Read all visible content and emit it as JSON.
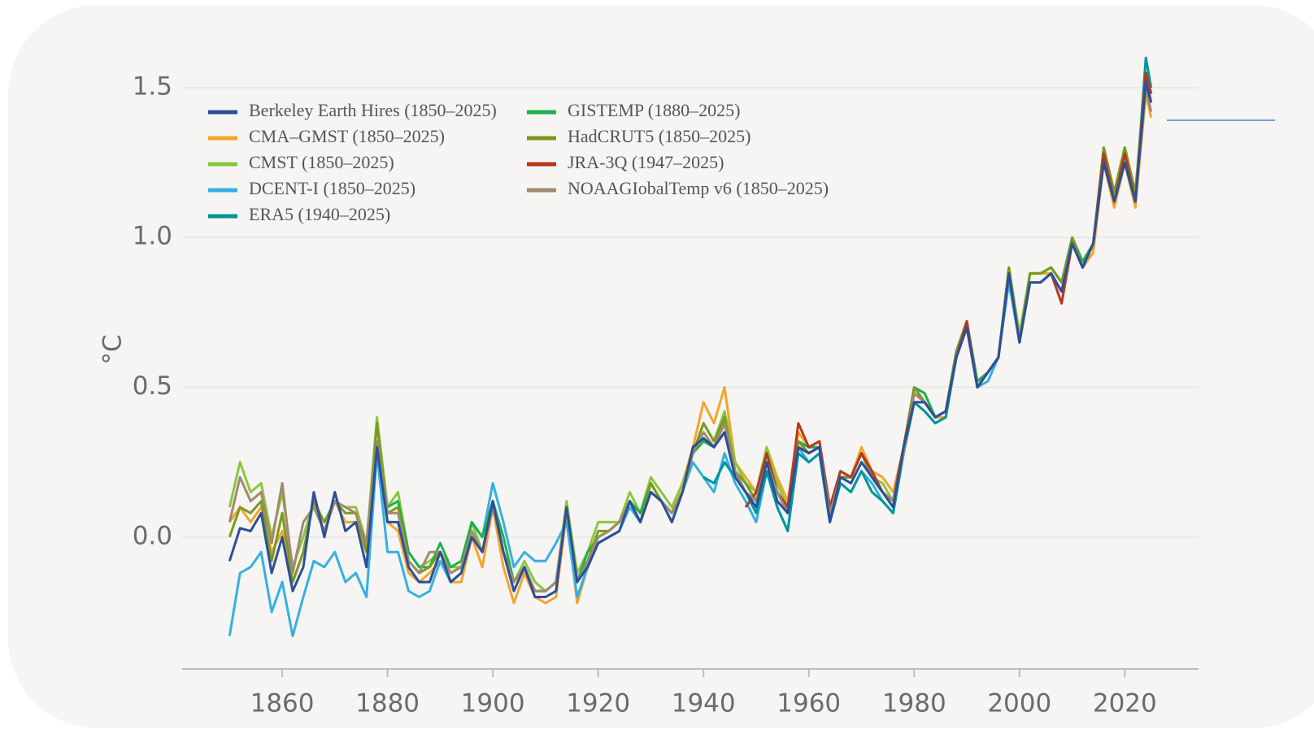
{
  "chart_data": {
    "type": "line",
    "y_label": "°C",
    "x": [
      1850,
      1852,
      1854,
      1856,
      1858,
      1860,
      1862,
      1864,
      1866,
      1868,
      1870,
      1872,
      1874,
      1876,
      1878,
      1880,
      1882,
      1884,
      1886,
      1888,
      1890,
      1892,
      1894,
      1896,
      1898,
      1900,
      1902,
      1904,
      1906,
      1908,
      1910,
      1912,
      1914,
      1916,
      1918,
      1920,
      1922,
      1924,
      1926,
      1928,
      1930,
      1932,
      1934,
      1936,
      1938,
      1940,
      1942,
      1944,
      1946,
      1948,
      1950,
      1952,
      1954,
      1956,
      1958,
      1960,
      1962,
      1964,
      1966,
      1968,
      1970,
      1972,
      1974,
      1976,
      1978,
      1980,
      1982,
      1984,
      1986,
      1988,
      1990,
      1992,
      1994,
      1996,
      1998,
      2000,
      2002,
      2004,
      2006,
      2008,
      2010,
      2012,
      2014,
      2016,
      2018,
      2020,
      2022,
      2024,
      2025
    ],
    "xlim": [
      1841,
      2034
    ],
    "xticks": [
      1860,
      1880,
      1900,
      1920,
      1940,
      1960,
      1980,
      2000,
      2020
    ],
    "ylim": [
      -0.44,
      1.63
    ],
    "yticks": [
      {
        "value": 0,
        "label": "0.0"
      },
      {
        "value": 0.5,
        "label": "0.5"
      },
      {
        "value": 1,
        "label": "1.0"
      },
      {
        "value": 1.5,
        "label": "1.5"
      }
    ],
    "grid": true,
    "legend": "top-left",
    "series": [
      {
        "name": "Berkeley Earth Hires (1850–2025)",
        "color": "#2b4f9a",
        "values": [
          -0.08,
          0.03,
          0.02,
          0.08,
          -0.12,
          0.0,
          -0.18,
          -0.1,
          0.15,
          0.0,
          0.15,
          0.02,
          0.05,
          -0.1,
          0.3,
          0.05,
          0.05,
          -0.1,
          -0.15,
          -0.15,
          -0.05,
          -0.15,
          -0.12,
          0.0,
          -0.05,
          0.12,
          -0.05,
          -0.18,
          -0.1,
          -0.2,
          -0.2,
          -0.18,
          0.1,
          -0.15,
          -0.1,
          -0.02,
          0.0,
          0.02,
          0.12,
          0.05,
          0.15,
          0.12,
          0.05,
          0.15,
          0.3,
          0.33,
          0.3,
          0.35,
          0.2,
          0.15,
          0.1,
          0.25,
          0.12,
          0.08,
          0.3,
          0.28,
          0.3,
          0.05,
          0.2,
          0.18,
          0.25,
          0.2,
          0.15,
          0.1,
          0.3,
          0.45,
          0.45,
          0.4,
          0.42,
          0.6,
          0.7,
          0.5,
          0.55,
          0.6,
          0.88,
          0.65,
          0.85,
          0.85,
          0.88,
          0.82,
          0.98,
          0.9,
          0.98,
          1.25,
          1.12,
          1.25,
          1.12,
          1.52,
          1.45
        ]
      },
      {
        "name": "CMA–GMST (1850–2025)",
        "color": "#f4a52c",
        "values": [
          0.05,
          0.1,
          0.05,
          0.1,
          -0.05,
          0.02,
          -0.15,
          -0.05,
          0.12,
          0.02,
          0.12,
          0.05,
          0.05,
          -0.05,
          0.3,
          0.05,
          0.02,
          -0.12,
          -0.15,
          -0.12,
          -0.08,
          -0.15,
          -0.15,
          0.0,
          -0.1,
          0.1,
          -0.1,
          -0.22,
          -0.12,
          -0.2,
          -0.22,
          -0.2,
          0.08,
          -0.22,
          -0.1,
          0.0,
          0.02,
          0.05,
          0.12,
          0.05,
          0.18,
          0.12,
          0.08,
          0.18,
          0.3,
          0.45,
          0.38,
          0.5,
          0.25,
          0.2,
          0.15,
          0.3,
          0.2,
          0.12,
          0.35,
          0.3,
          0.32,
          0.1,
          0.22,
          0.2,
          0.3,
          0.22,
          0.2,
          0.15,
          0.3,
          0.5,
          0.45,
          0.4,
          0.4,
          0.6,
          0.72,
          0.5,
          0.55,
          0.6,
          0.88,
          0.65,
          0.88,
          0.88,
          0.88,
          0.82,
          0.98,
          0.9,
          0.95,
          1.25,
          1.1,
          1.25,
          1.1,
          1.48,
          1.4
        ]
      },
      {
        "name": "CMST (1850–2025)",
        "color": "#8cc63f",
        "values": [
          0.1,
          0.25,
          0.15,
          0.18,
          0.0,
          0.15,
          -0.1,
          0.0,
          0.12,
          0.05,
          0.12,
          0.1,
          0.1,
          -0.02,
          0.4,
          0.1,
          0.15,
          -0.05,
          -0.1,
          -0.08,
          -0.05,
          -0.1,
          -0.1,
          0.05,
          -0.05,
          0.12,
          -0.05,
          -0.15,
          -0.08,
          -0.15,
          -0.18,
          -0.15,
          0.12,
          -0.12,
          -0.05,
          0.05,
          0.05,
          0.05,
          0.15,
          0.08,
          0.2,
          0.15,
          0.1,
          0.18,
          0.28,
          0.38,
          0.32,
          0.42,
          0.25,
          0.18,
          0.15,
          0.3,
          0.18,
          0.1,
          0.32,
          0.28,
          0.3,
          0.08,
          0.2,
          0.2,
          0.28,
          0.2,
          0.18,
          0.12,
          0.3,
          0.5,
          0.48,
          0.4,
          0.42,
          0.62,
          0.72,
          0.52,
          0.55,
          0.6,
          0.9,
          0.68,
          0.88,
          0.88,
          0.9,
          0.85,
          1.0,
          0.92,
          0.98,
          1.3,
          1.15,
          1.3,
          1.15,
          1.55,
          1.48
        ]
      },
      {
        "name": "DCENT-I (1850–2025)",
        "color": "#35b0e0",
        "values": [
          -0.33,
          -0.12,
          -0.1,
          -0.05,
          -0.25,
          -0.15,
          -0.33,
          -0.2,
          -0.08,
          -0.1,
          -0.05,
          -0.15,
          -0.12,
          -0.2,
          0.28,
          -0.05,
          -0.05,
          -0.18,
          -0.2,
          -0.18,
          -0.08,
          -0.15,
          -0.12,
          0.05,
          0.0,
          0.18,
          0.05,
          -0.1,
          -0.05,
          -0.08,
          -0.08,
          -0.02,
          0.05,
          -0.2,
          -0.1,
          -0.02,
          0.0,
          0.02,
          0.1,
          0.05,
          0.15,
          0.12,
          0.05,
          0.15,
          0.25,
          0.2,
          0.15,
          0.28,
          0.18,
          0.12,
          0.05,
          0.22,
          0.1,
          0.02,
          0.3,
          0.25,
          0.28,
          0.05,
          0.18,
          0.15,
          0.22,
          0.18,
          0.12,
          0.08,
          0.28,
          0.45,
          0.42,
          0.38,
          0.4,
          0.6,
          0.7,
          0.5,
          0.52,
          0.6,
          0.85,
          0.65,
          0.85,
          0.85,
          0.88,
          0.82,
          0.98,
          0.9,
          0.98,
          1.28,
          1.12,
          1.25,
          1.12,
          1.55,
          1.45
        ]
      },
      {
        "name": "ERA5 (1940–2025)",
        "color": "#00959a",
        "values": [
          null,
          null,
          null,
          null,
          null,
          null,
          null,
          null,
          null,
          null,
          null,
          null,
          null,
          null,
          null,
          null,
          null,
          null,
          null,
          null,
          null,
          null,
          null,
          null,
          null,
          null,
          null,
          null,
          null,
          null,
          null,
          null,
          null,
          null,
          null,
          null,
          null,
          null,
          null,
          null,
          null,
          null,
          null,
          null,
          null,
          0.2,
          0.18,
          0.25,
          0.2,
          0.15,
          0.08,
          0.22,
          0.1,
          0.02,
          0.28,
          0.25,
          0.28,
          0.05,
          0.18,
          0.15,
          0.22,
          0.15,
          0.12,
          0.08,
          0.28,
          0.45,
          0.42,
          0.38,
          0.4,
          0.6,
          0.7,
          0.5,
          0.55,
          0.6,
          0.88,
          0.65,
          0.85,
          0.85,
          0.88,
          0.82,
          0.98,
          0.9,
          0.98,
          1.28,
          1.12,
          1.25,
          1.12,
          1.6,
          1.5
        ]
      },
      {
        "name": "GISTEMP (1880–2025)",
        "color": "#1db14b",
        "values": [
          null,
          null,
          null,
          null,
          null,
          null,
          null,
          null,
          null,
          null,
          null,
          null,
          null,
          null,
          null,
          0.1,
          0.12,
          -0.05,
          -0.1,
          -0.1,
          -0.02,
          -0.1,
          -0.08,
          0.05,
          0.0,
          0.12,
          0.0,
          -0.15,
          -0.1,
          -0.18,
          -0.18,
          -0.15,
          0.1,
          -0.15,
          -0.05,
          0.0,
          0.02,
          0.05,
          0.12,
          0.08,
          0.18,
          0.12,
          0.08,
          0.15,
          0.28,
          0.32,
          0.3,
          0.38,
          0.22,
          0.18,
          0.12,
          0.28,
          0.15,
          0.08,
          0.32,
          0.3,
          0.3,
          0.08,
          0.2,
          0.2,
          0.28,
          0.2,
          0.15,
          0.12,
          0.3,
          0.5,
          0.48,
          0.4,
          0.42,
          0.62,
          0.72,
          0.52,
          0.55,
          0.6,
          0.9,
          0.65,
          0.88,
          0.88,
          0.9,
          0.85,
          1.0,
          0.92,
          0.98,
          1.3,
          1.15,
          1.3,
          1.15,
          1.55,
          1.48
        ]
      },
      {
        "name": "HadCRUT5 (1850–2025)",
        "color": "#7a9a1e",
        "values": [
          0.0,
          0.1,
          0.08,
          0.12,
          -0.08,
          0.08,
          -0.15,
          -0.05,
          0.12,
          0.05,
          0.12,
          0.08,
          0.08,
          -0.05,
          0.38,
          0.08,
          0.1,
          -0.08,
          -0.12,
          -0.1,
          -0.05,
          -0.12,
          -0.1,
          0.02,
          -0.05,
          0.12,
          -0.05,
          -0.15,
          -0.1,
          -0.18,
          -0.18,
          -0.15,
          0.1,
          -0.15,
          -0.08,
          0.02,
          0.02,
          0.05,
          0.12,
          0.05,
          0.18,
          0.12,
          0.08,
          0.15,
          0.28,
          0.38,
          0.32,
          0.4,
          0.22,
          0.18,
          0.12,
          0.28,
          0.15,
          0.08,
          0.32,
          0.28,
          0.3,
          0.08,
          0.2,
          0.2,
          0.28,
          0.2,
          0.15,
          0.12,
          0.3,
          0.5,
          0.45,
          0.4,
          0.42,
          0.62,
          0.72,
          0.5,
          0.55,
          0.6,
          0.9,
          0.65,
          0.88,
          0.88,
          0.9,
          0.85,
          1.0,
          0.9,
          0.98,
          1.3,
          1.15,
          1.3,
          1.15,
          1.55,
          1.48
        ]
      },
      {
        "name": "JRA-3Q (1947–2025)",
        "color": "#b5381e",
        "values": [
          null,
          null,
          null,
          null,
          null,
          null,
          null,
          null,
          null,
          null,
          null,
          null,
          null,
          null,
          null,
          null,
          null,
          null,
          null,
          null,
          null,
          null,
          null,
          null,
          null,
          null,
          null,
          null,
          null,
          null,
          null,
          null,
          null,
          null,
          null,
          null,
          null,
          null,
          null,
          null,
          null,
          null,
          null,
          null,
          null,
          null,
          null,
          null,
          null,
          0.1,
          0.15,
          0.28,
          0.15,
          0.1,
          0.38,
          0.3,
          0.32,
          0.1,
          0.22,
          0.2,
          0.28,
          0.22,
          0.15,
          0.12,
          0.3,
          0.48,
          0.45,
          0.4,
          0.42,
          0.6,
          0.72,
          0.5,
          0.55,
          0.6,
          0.88,
          0.65,
          0.85,
          0.85,
          0.88,
          0.78,
          0.98,
          0.9,
          0.98,
          1.28,
          1.12,
          1.28,
          1.12,
          1.55,
          1.48
        ]
      },
      {
        "name": "NOAAGIobalTemp v6 (1850–2025)",
        "color": "#a08a70",
        "values": [
          0.05,
          0.2,
          0.12,
          0.15,
          -0.02,
          0.18,
          -0.12,
          0.05,
          0.1,
          0.02,
          0.12,
          0.1,
          0.08,
          -0.02,
          0.32,
          0.08,
          0.08,
          -0.08,
          -0.12,
          -0.05,
          -0.05,
          -0.12,
          -0.1,
          0.02,
          -0.05,
          0.1,
          -0.05,
          -0.15,
          -0.1,
          -0.18,
          -0.18,
          -0.15,
          0.1,
          -0.15,
          -0.08,
          0.0,
          0.02,
          0.05,
          0.12,
          0.05,
          0.15,
          0.12,
          0.08,
          0.15,
          0.28,
          0.35,
          0.3,
          0.38,
          0.22,
          0.15,
          0.12,
          0.25,
          0.15,
          0.08,
          0.3,
          0.28,
          0.3,
          0.08,
          0.2,
          0.18,
          0.25,
          0.2,
          0.15,
          0.12,
          0.28,
          0.48,
          0.45,
          0.4,
          0.42,
          0.6,
          0.7,
          0.5,
          0.55,
          0.6,
          0.88,
          0.65,
          0.85,
          0.85,
          0.88,
          0.82,
          0.98,
          0.9,
          0.98,
          1.25,
          1.12,
          1.25,
          1.12,
          1.5,
          1.42
        ]
      }
    ]
  }
}
